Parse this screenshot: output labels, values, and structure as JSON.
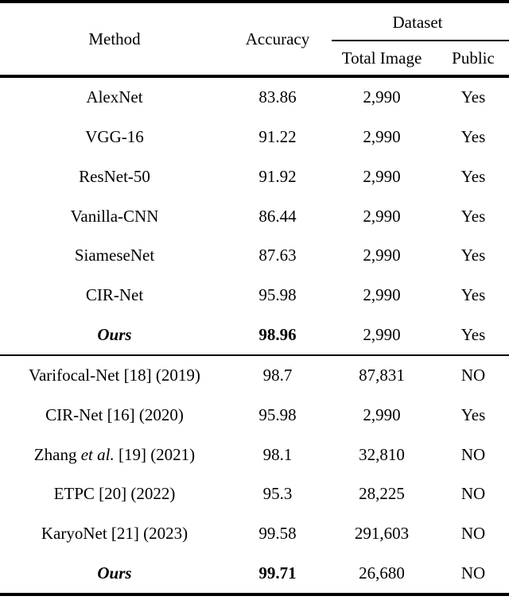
{
  "header": {
    "method": "Method",
    "accuracy": "Accuracy",
    "dataset": "Dataset",
    "total_image": "Total Image",
    "public": "Public"
  },
  "rows": [
    {
      "method": "AlexNet",
      "accuracy": "83.86",
      "total_image": "2,990",
      "public": "Yes",
      "emphasis": false
    },
    {
      "method": "VGG-16",
      "accuracy": "91.22",
      "total_image": "2,990",
      "public": "Yes",
      "emphasis": false
    },
    {
      "method": "ResNet-50",
      "accuracy": "91.92",
      "total_image": "2,990",
      "public": "Yes",
      "emphasis": false
    },
    {
      "method": "Vanilla-CNN",
      "accuracy": "86.44",
      "total_image": "2,990",
      "public": "Yes",
      "emphasis": false
    },
    {
      "method": "SiameseNet",
      "accuracy": "87.63",
      "total_image": "2,990",
      "public": "Yes",
      "emphasis": false
    },
    {
      "method": "CIR-Net",
      "accuracy": "95.98",
      "total_image": "2,990",
      "public": "Yes",
      "emphasis": false
    },
    {
      "method": "Ours",
      "accuracy": "98.96",
      "total_image": "2,990",
      "public": "Yes",
      "emphasis": true
    },
    {
      "method": "Varifocal-Net [18] (2019)",
      "accuracy": "98.7",
      "total_image": "87,831",
      "public": "NO",
      "emphasis": false
    },
    {
      "method": "CIR-Net [16] (2020)",
      "accuracy": "95.98",
      "total_image": "2,990",
      "public": "Yes",
      "emphasis": false
    },
    {
      "method_pre": "Zhang ",
      "method_italic": "et al.",
      "method_post": " [19] (2021)",
      "accuracy": "98.1",
      "total_image": "32,810",
      "public": "NO",
      "emphasis": false
    },
    {
      "method": "ETPC [20] (2022)",
      "accuracy": "95.3",
      "total_image": "28,225",
      "public": "NO",
      "emphasis": false
    },
    {
      "method": "KaryoNet [21] (2023)",
      "accuracy": "99.58",
      "total_image": "291,603",
      "public": "NO",
      "emphasis": false
    },
    {
      "method": "Ours",
      "accuracy": "99.71",
      "total_image": "26,680",
      "public": "NO",
      "emphasis": true
    }
  ],
  "colors": {
    "text": "#000000",
    "background": "#ffffff",
    "rule": "#000000"
  }
}
